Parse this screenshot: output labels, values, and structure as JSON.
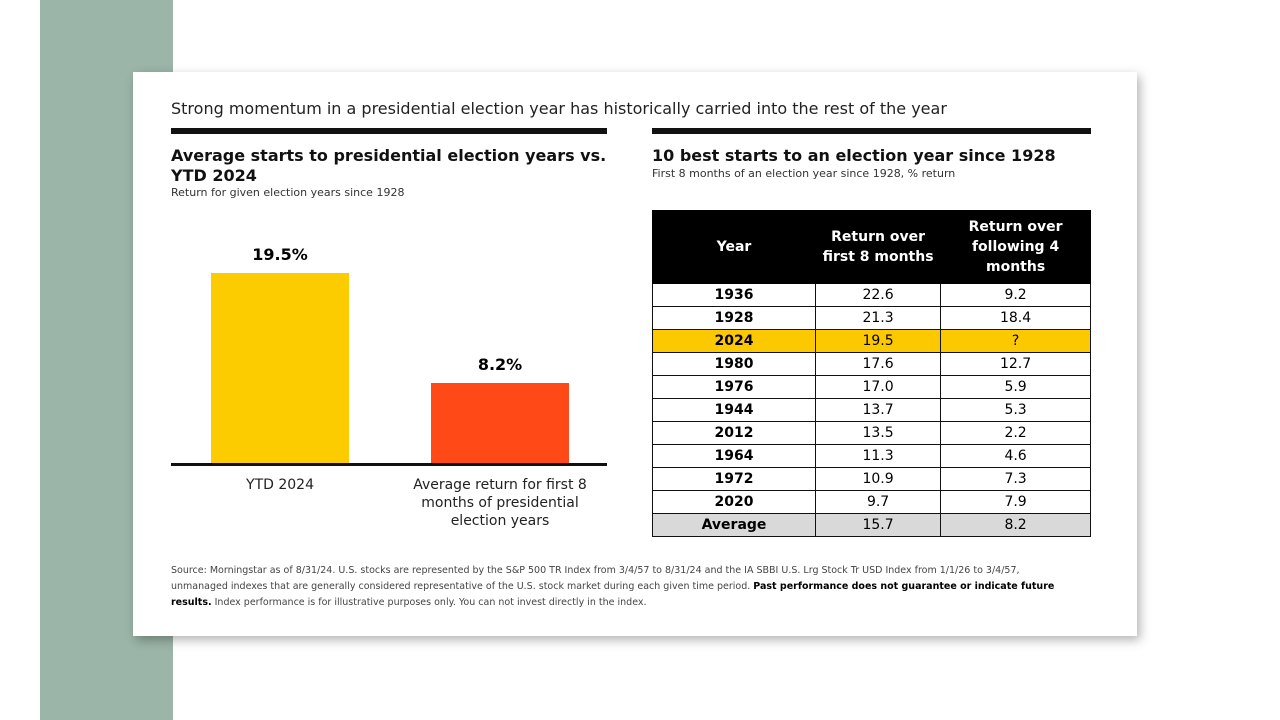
{
  "title": "Strong momentum in a presidential election year has historically carried into the rest of the year",
  "chart_data": {
    "type": "bar",
    "title": "Average starts to presidential election years vs. YTD 2024",
    "subtitle": "Return for given election years since 1928",
    "categories": [
      "YTD 2024",
      "Average return for first 8 months of presidential election years"
    ],
    "values": [
      19.5,
      8.2
    ],
    "data_labels": [
      "19.5%",
      "8.2%"
    ],
    "colors": [
      "#fccb00",
      "#ff4a17"
    ],
    "ylim": [
      0,
      20
    ]
  },
  "table": {
    "title": "10 best starts to an election year since 1928",
    "subtitle": "First 8 months of an election year since 1928, % return",
    "headers": [
      "Year",
      "Return over first 8 months",
      "Return over following 4 months"
    ],
    "rows": [
      [
        "1936",
        "22.6",
        "9.2"
      ],
      [
        "1928",
        "21.3",
        "18.4"
      ],
      [
        "2024",
        "19.5",
        "?"
      ],
      [
        "1980",
        "17.6",
        "12.7"
      ],
      [
        "1976",
        "17.0",
        "5.9"
      ],
      [
        "1944",
        "13.7",
        "5.3"
      ],
      [
        "2012",
        "13.5",
        "2.2"
      ],
      [
        "1964",
        "11.3",
        "4.6"
      ],
      [
        "1972",
        "10.9",
        "7.3"
      ],
      [
        "2020",
        "9.7",
        "7.9"
      ]
    ],
    "average": [
      "Average",
      "15.7",
      "8.2"
    ]
  },
  "source": {
    "text1": "Source: Morningstar as of 8/31/24. U.S. stocks are represented by the S&P 500 TR Index from 3/4/57 to 8/31/24 and the IA SBBI U.S. Lrg Stock Tr USD Index from 1/1/26 to 3/4/57, unmanaged indexes that are generally considered representative of the U.S. stock market during each given time period. ",
    "bold": "Past performance does not guarantee or indicate future results.",
    "text2": " Index performance is for illustrative purposes only. You can not invest directly in the index."
  }
}
